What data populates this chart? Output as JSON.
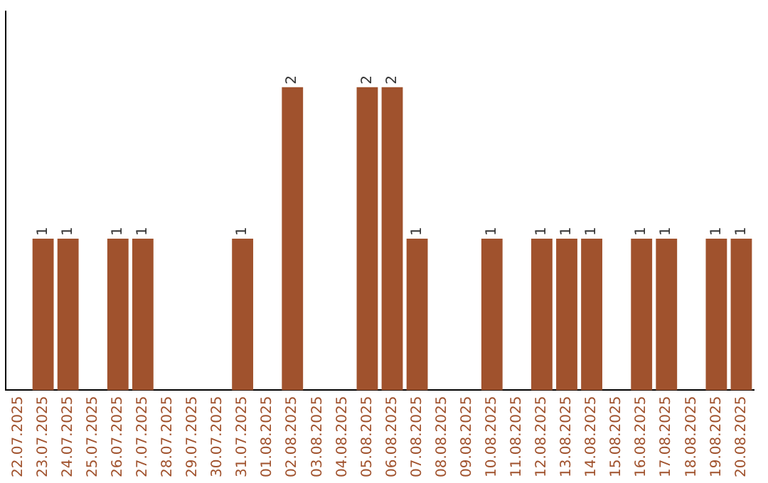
{
  "chart_data": {
    "type": "bar",
    "categories": [
      "22.07.2025",
      "23.07.2025",
      "24.07.2025",
      "25.07.2025",
      "26.07.2025",
      "27.07.2025",
      "28.07.2025",
      "29.07.2025",
      "30.07.2025",
      "31.07.2025",
      "01.08.2025",
      "02.08.2025",
      "03.08.2025",
      "04.08.2025",
      "05.08.2025",
      "06.08.2025",
      "07.08.2025",
      "08.08.2025",
      "09.08.2025",
      "10.08.2025",
      "11.08.2025",
      "12.08.2025",
      "13.08.2025",
      "14.08.2025",
      "15.08.2025",
      "16.08.2025",
      "17.08.2025",
      "18.08.2025",
      "19.08.2025",
      "20.08.2025"
    ],
    "values": [
      0,
      1,
      1,
      0,
      1,
      1,
      0,
      0,
      0,
      1,
      0,
      2,
      0,
      0,
      2,
      2,
      1,
      0,
      0,
      1,
      0,
      1,
      1,
      1,
      0,
      1,
      1,
      0,
      1,
      1
    ],
    "value_labels": [
      null,
      "1",
      "1",
      null,
      "1",
      "1",
      null,
      null,
      null,
      "1",
      null,
      "2",
      null,
      null,
      "2",
      "2",
      "1",
      null,
      null,
      "1",
      null,
      "1",
      "1",
      "1",
      null,
      "1",
      "1",
      null,
      "1",
      "1"
    ],
    "color": "#a0522d",
    "tick_labels": "x",
    "grid": false,
    "legend": false
  }
}
